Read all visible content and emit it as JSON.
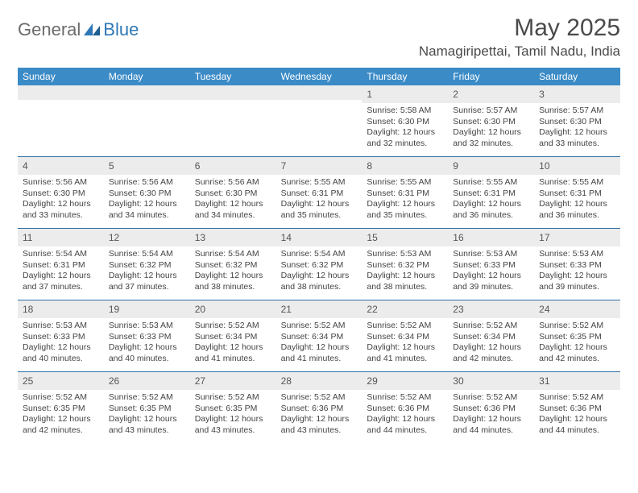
{
  "logo": {
    "word1": "General",
    "word2": "Blue"
  },
  "title": "May 2025",
  "location": "Namagiripettai, Tamil Nadu, India",
  "daysOfWeek": [
    "Sunday",
    "Monday",
    "Tuesday",
    "Wednesday",
    "Thursday",
    "Friday",
    "Saturday"
  ],
  "colors": {
    "headerBar": "#3b8bc7",
    "headerText": "#ffffff",
    "dayNumBg": "#ececec",
    "weekBorder": "#2f6fa3",
    "logoGray": "#6b6b6b",
    "logoBlue": "#2f78b7"
  },
  "weeks": [
    [
      {
        "blank": true
      },
      {
        "blank": true
      },
      {
        "blank": true
      },
      {
        "blank": true
      },
      {
        "n": "1",
        "sr": "Sunrise: 5:58 AM",
        "ss": "Sunset: 6:30 PM",
        "d1": "Daylight: 12 hours",
        "d2": "and 32 minutes."
      },
      {
        "n": "2",
        "sr": "Sunrise: 5:57 AM",
        "ss": "Sunset: 6:30 PM",
        "d1": "Daylight: 12 hours",
        "d2": "and 32 minutes."
      },
      {
        "n": "3",
        "sr": "Sunrise: 5:57 AM",
        "ss": "Sunset: 6:30 PM",
        "d1": "Daylight: 12 hours",
        "d2": "and 33 minutes."
      }
    ],
    [
      {
        "n": "4",
        "sr": "Sunrise: 5:56 AM",
        "ss": "Sunset: 6:30 PM",
        "d1": "Daylight: 12 hours",
        "d2": "and 33 minutes."
      },
      {
        "n": "5",
        "sr": "Sunrise: 5:56 AM",
        "ss": "Sunset: 6:30 PM",
        "d1": "Daylight: 12 hours",
        "d2": "and 34 minutes."
      },
      {
        "n": "6",
        "sr": "Sunrise: 5:56 AM",
        "ss": "Sunset: 6:30 PM",
        "d1": "Daylight: 12 hours",
        "d2": "and 34 minutes."
      },
      {
        "n": "7",
        "sr": "Sunrise: 5:55 AM",
        "ss": "Sunset: 6:31 PM",
        "d1": "Daylight: 12 hours",
        "d2": "and 35 minutes."
      },
      {
        "n": "8",
        "sr": "Sunrise: 5:55 AM",
        "ss": "Sunset: 6:31 PM",
        "d1": "Daylight: 12 hours",
        "d2": "and 35 minutes."
      },
      {
        "n": "9",
        "sr": "Sunrise: 5:55 AM",
        "ss": "Sunset: 6:31 PM",
        "d1": "Daylight: 12 hours",
        "d2": "and 36 minutes."
      },
      {
        "n": "10",
        "sr": "Sunrise: 5:55 AM",
        "ss": "Sunset: 6:31 PM",
        "d1": "Daylight: 12 hours",
        "d2": "and 36 minutes."
      }
    ],
    [
      {
        "n": "11",
        "sr": "Sunrise: 5:54 AM",
        "ss": "Sunset: 6:31 PM",
        "d1": "Daylight: 12 hours",
        "d2": "and 37 minutes."
      },
      {
        "n": "12",
        "sr": "Sunrise: 5:54 AM",
        "ss": "Sunset: 6:32 PM",
        "d1": "Daylight: 12 hours",
        "d2": "and 37 minutes."
      },
      {
        "n": "13",
        "sr": "Sunrise: 5:54 AM",
        "ss": "Sunset: 6:32 PM",
        "d1": "Daylight: 12 hours",
        "d2": "and 38 minutes."
      },
      {
        "n": "14",
        "sr": "Sunrise: 5:54 AM",
        "ss": "Sunset: 6:32 PM",
        "d1": "Daylight: 12 hours",
        "d2": "and 38 minutes."
      },
      {
        "n": "15",
        "sr": "Sunrise: 5:53 AM",
        "ss": "Sunset: 6:32 PM",
        "d1": "Daylight: 12 hours",
        "d2": "and 38 minutes."
      },
      {
        "n": "16",
        "sr": "Sunrise: 5:53 AM",
        "ss": "Sunset: 6:33 PM",
        "d1": "Daylight: 12 hours",
        "d2": "and 39 minutes."
      },
      {
        "n": "17",
        "sr": "Sunrise: 5:53 AM",
        "ss": "Sunset: 6:33 PM",
        "d1": "Daylight: 12 hours",
        "d2": "and 39 minutes."
      }
    ],
    [
      {
        "n": "18",
        "sr": "Sunrise: 5:53 AM",
        "ss": "Sunset: 6:33 PM",
        "d1": "Daylight: 12 hours",
        "d2": "and 40 minutes."
      },
      {
        "n": "19",
        "sr": "Sunrise: 5:53 AM",
        "ss": "Sunset: 6:33 PM",
        "d1": "Daylight: 12 hours",
        "d2": "and 40 minutes."
      },
      {
        "n": "20",
        "sr": "Sunrise: 5:52 AM",
        "ss": "Sunset: 6:34 PM",
        "d1": "Daylight: 12 hours",
        "d2": "and 41 minutes."
      },
      {
        "n": "21",
        "sr": "Sunrise: 5:52 AM",
        "ss": "Sunset: 6:34 PM",
        "d1": "Daylight: 12 hours",
        "d2": "and 41 minutes."
      },
      {
        "n": "22",
        "sr": "Sunrise: 5:52 AM",
        "ss": "Sunset: 6:34 PM",
        "d1": "Daylight: 12 hours",
        "d2": "and 41 minutes."
      },
      {
        "n": "23",
        "sr": "Sunrise: 5:52 AM",
        "ss": "Sunset: 6:34 PM",
        "d1": "Daylight: 12 hours",
        "d2": "and 42 minutes."
      },
      {
        "n": "24",
        "sr": "Sunrise: 5:52 AM",
        "ss": "Sunset: 6:35 PM",
        "d1": "Daylight: 12 hours",
        "d2": "and 42 minutes."
      }
    ],
    [
      {
        "n": "25",
        "sr": "Sunrise: 5:52 AM",
        "ss": "Sunset: 6:35 PM",
        "d1": "Daylight: 12 hours",
        "d2": "and 42 minutes."
      },
      {
        "n": "26",
        "sr": "Sunrise: 5:52 AM",
        "ss": "Sunset: 6:35 PM",
        "d1": "Daylight: 12 hours",
        "d2": "and 43 minutes."
      },
      {
        "n": "27",
        "sr": "Sunrise: 5:52 AM",
        "ss": "Sunset: 6:35 PM",
        "d1": "Daylight: 12 hours",
        "d2": "and 43 minutes."
      },
      {
        "n": "28",
        "sr": "Sunrise: 5:52 AM",
        "ss": "Sunset: 6:36 PM",
        "d1": "Daylight: 12 hours",
        "d2": "and 43 minutes."
      },
      {
        "n": "29",
        "sr": "Sunrise: 5:52 AM",
        "ss": "Sunset: 6:36 PM",
        "d1": "Daylight: 12 hours",
        "d2": "and 44 minutes."
      },
      {
        "n": "30",
        "sr": "Sunrise: 5:52 AM",
        "ss": "Sunset: 6:36 PM",
        "d1": "Daylight: 12 hours",
        "d2": "and 44 minutes."
      },
      {
        "n": "31",
        "sr": "Sunrise: 5:52 AM",
        "ss": "Sunset: 6:36 PM",
        "d1": "Daylight: 12 hours",
        "d2": "and 44 minutes."
      }
    ]
  ]
}
